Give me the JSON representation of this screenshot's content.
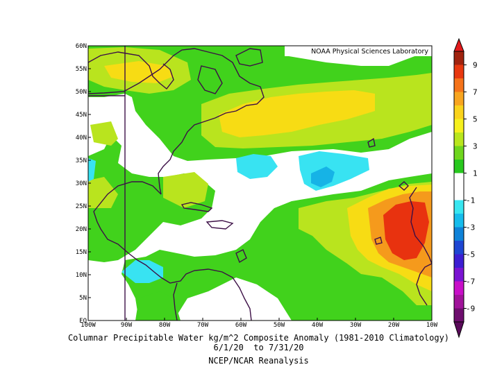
{
  "source_label": "NOAA Physical Sciences Laboratory",
  "caption": {
    "line1": "Columnar Precipitable Water kg/m^2 Composite Anomaly (1981-2010 Climatology)",
    "line2": "6/1/20  to 7/31/20",
    "line3": "NCEP/NCAR Reanalysis"
  },
  "lat_ticks": [
    "60N",
    "55N",
    "50N",
    "45N",
    "40N",
    "35N",
    "30N",
    "25N",
    "20N",
    "15N",
    "10N",
    "5N",
    "EQ"
  ],
  "lon_ticks": [
    "100W",
    "90W",
    "80W",
    "70W",
    "60W",
    "50W",
    "40W",
    "30W",
    "20W",
    "10W"
  ],
  "colorbar": {
    "labels": [
      "9",
      "7",
      "5",
      "3",
      "1",
      "-1",
      "-3",
      "-5",
      "-7",
      "-9"
    ],
    "colors": [
      "#a0230f",
      "#e8380f",
      "#f5731a",
      "#f8a520",
      "#fad31c",
      "#f6f01e",
      "#b9e61e",
      "#6fd61e",
      "#28c81e",
      "#ffffff",
      "#ffffff",
      "#38e6f0",
      "#16bcec",
      "#0f82d8",
      "#1e46d2",
      "#3c1ed2",
      "#7a14d2",
      "#c80fc8",
      "#a0139a",
      "#6e0e6e"
    ],
    "min_triangle_color": "#5a0a5a",
    "max_triangle_color": "#e31a1c"
  },
  "palette": {
    "green": "#41d21c",
    "yellowgreen": "#b9e41e",
    "yellow": "#f7dc14",
    "orange": "#f59a1c",
    "red": "#e8320f",
    "cyan": "#38e3f2",
    "lightblue": "#16b3e6",
    "coastline": "#3c0f46"
  }
}
